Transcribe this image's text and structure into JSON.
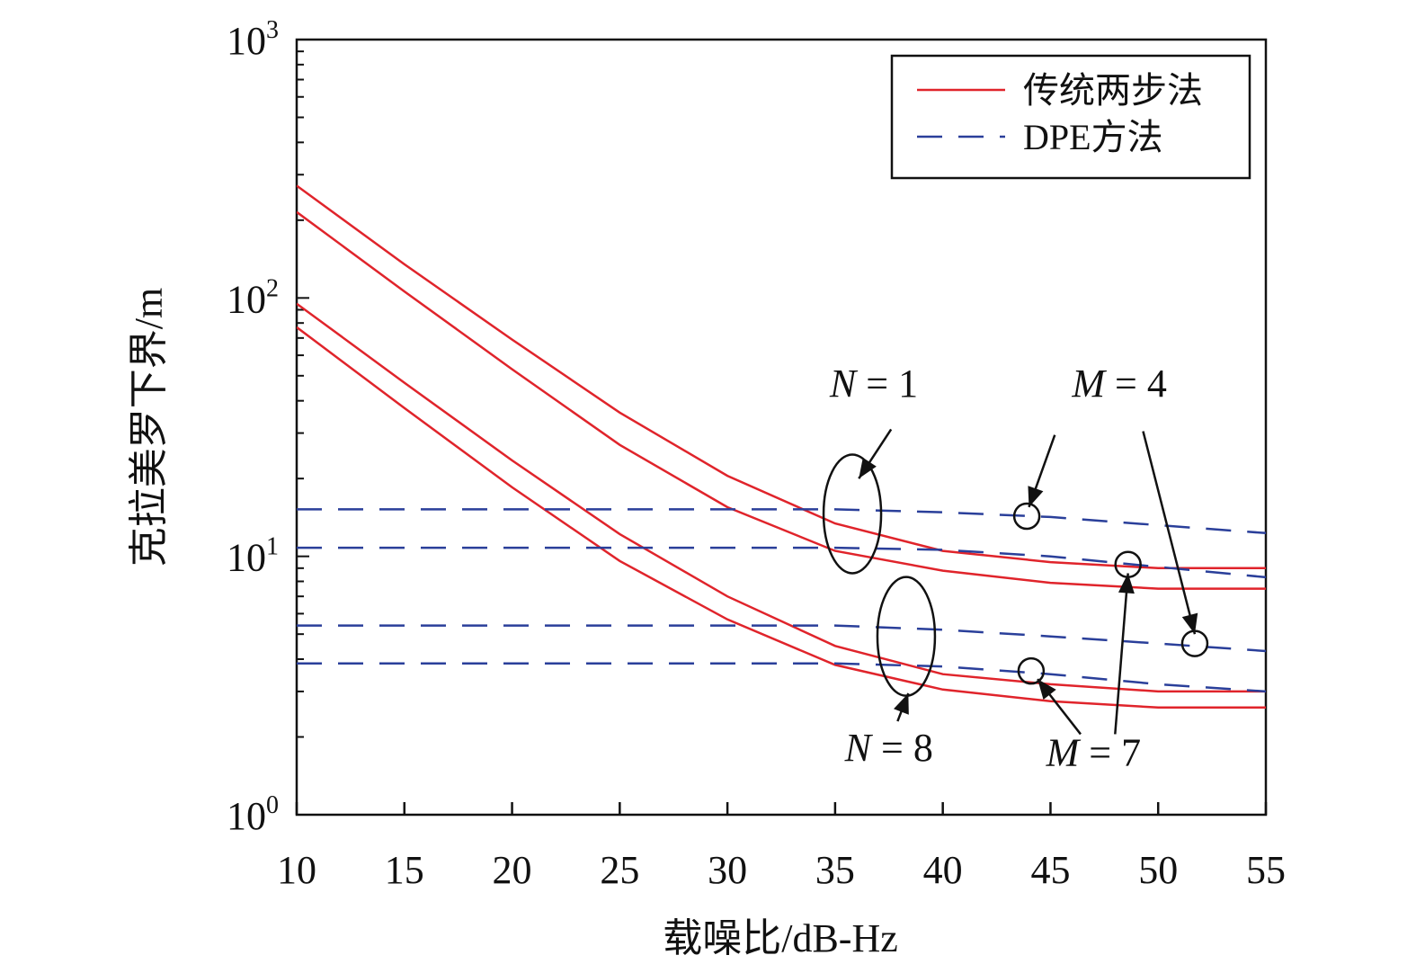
{
  "chart_data": {
    "type": "line",
    "xlabel": "载噪比/dB-Hz",
    "ylabel": "克拉美罗下界/m",
    "xlim": [
      10,
      55
    ],
    "ylim": [
      1,
      1000
    ],
    "yscale": "log",
    "xticks": [
      "10",
      "15",
      "20",
      "25",
      "30",
      "35",
      "40",
      "45",
      "50",
      "55"
    ],
    "yticks": [
      {
        "base": "10",
        "exp": "0",
        "value": 1
      },
      {
        "base": "10",
        "exp": "1",
        "value": 10
      },
      {
        "base": "10",
        "exp": "2",
        "value": 100
      },
      {
        "base": "10",
        "exp": "3",
        "value": 1000
      }
    ],
    "grid": false,
    "legend": {
      "position": "top-right",
      "entries": [
        {
          "label": "传统两步法",
          "color": "#e0242b",
          "style": "solid"
        },
        {
          "label": "DPE方法",
          "color": "#2a3f9a",
          "style": "dashed"
        }
      ]
    },
    "x": [
      10,
      15,
      20,
      25,
      30,
      35,
      40,
      45,
      50,
      55
    ],
    "series": [
      {
        "group": "traditional",
        "values": [
          272,
          135,
          69,
          36,
          20.5,
          13.4,
          10.5,
          9.5,
          9.0,
          9.0
        ]
      },
      {
        "group": "traditional",
        "values": [
          215,
          106,
          53,
          27,
          15.5,
          10.5,
          8.8,
          7.9,
          7.5,
          7.5
        ]
      },
      {
        "group": "traditional",
        "values": [
          95,
          47,
          23.5,
          12.2,
          7.0,
          4.5,
          3.5,
          3.2,
          3.0,
          3.0
        ]
      },
      {
        "group": "traditional",
        "values": [
          77,
          37.5,
          18.5,
          9.6,
          5.7,
          3.8,
          3.05,
          2.75,
          2.6,
          2.6
        ]
      },
      {
        "group": "dpe",
        "values": [
          15.2,
          15.2,
          15.2,
          15.2,
          15.2,
          15.2,
          14.8,
          14.2,
          13.2,
          12.3
        ]
      },
      {
        "group": "dpe",
        "values": [
          10.8,
          10.8,
          10.8,
          10.8,
          10.8,
          10.8,
          10.6,
          10.0,
          9.1,
          8.3
        ]
      },
      {
        "group": "dpe",
        "values": [
          5.4,
          5.4,
          5.4,
          5.4,
          5.4,
          5.4,
          5.2,
          4.9,
          4.6,
          4.3
        ]
      },
      {
        "group": "dpe",
        "values": [
          3.85,
          3.85,
          3.85,
          3.85,
          3.85,
          3.85,
          3.75,
          3.5,
          3.2,
          3.0
        ]
      }
    ],
    "annotations": [
      {
        "var": "N",
        "rest": " = 1"
      },
      {
        "var": "N",
        "rest": " = 8"
      },
      {
        "var": "M",
        "rest": " = 4"
      },
      {
        "var": "M",
        "rest": " = 7"
      }
    ]
  }
}
